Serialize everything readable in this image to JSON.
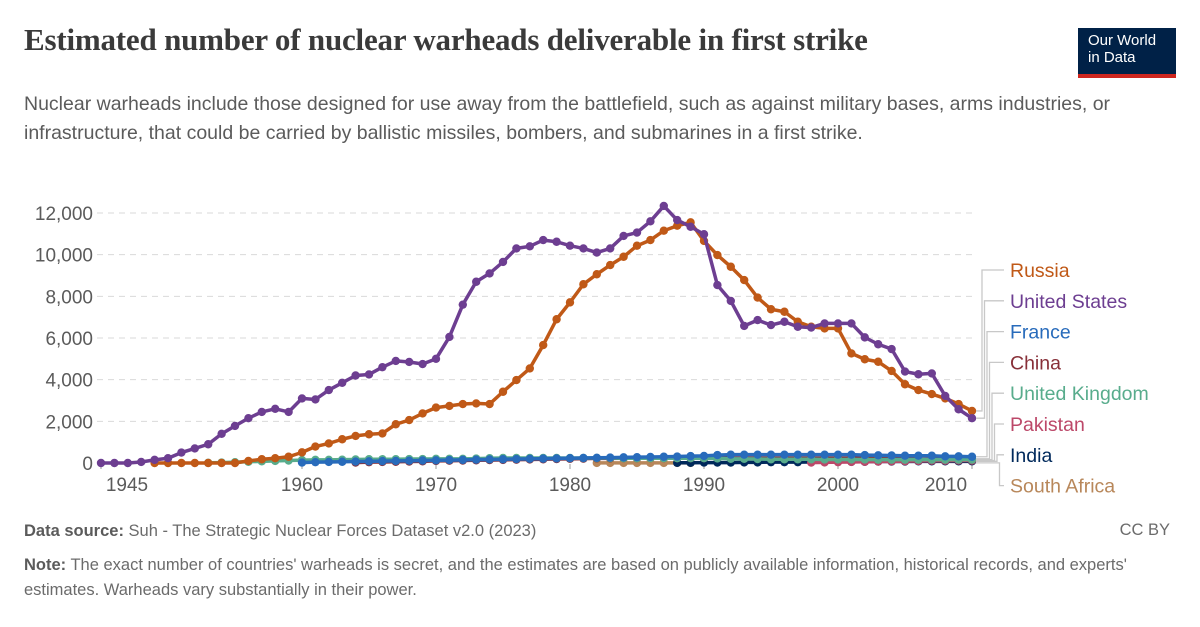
{
  "header": {
    "title": "Estimated number of nuclear warheads deliverable in first strike",
    "subtitle": "Nuclear warheads include those designed for use away from the battlefield, such as against military bases, arms industries, or infrastructure, that could be carried by ballistic missiles, bombers, and submarines in a first strike.",
    "logo_line1": "Our World",
    "logo_line2": "in Data"
  },
  "footer": {
    "source_label": "Data source:",
    "source_text": " Suh - The Strategic Nuclear Forces Dataset v2.0 (2023)",
    "license": "CC BY",
    "note_label": "Note:",
    "note_text": " The exact number of countries' warheads is secret, and the estimates are based on publicly available information, historical records, and experts' estimates. Warheads vary substantially in their power."
  },
  "chart_data": {
    "type": "line",
    "title": "Estimated number of nuclear warheads deliverable in first strike",
    "xlim": [
      1945,
      2010
    ],
    "ylim": [
      0,
      12000
    ],
    "x_ticks": [
      1945,
      1960,
      1970,
      1980,
      1990,
      2000,
      2010
    ],
    "y_ticks": [
      0,
      2000,
      4000,
      6000,
      8000,
      10000,
      12000
    ],
    "y_tick_labels": [
      "0",
      "2,000",
      "4,000",
      "6,000",
      "8,000",
      "10,000",
      "12,000"
    ],
    "grid": "horizontal dashed",
    "legend": "right (line-end labels)",
    "series": [
      {
        "name": "Russia",
        "color": "#c05917",
        "start_year": 1949,
        "values": [
          0,
          0,
          0,
          0,
          0,
          0,
          0,
          100,
          180,
          230,
          300,
          510,
          790,
          940,
          1140,
          1300,
          1380,
          1420,
          1860,
          2060,
          2380,
          2660,
          2740,
          2830,
          2860,
          2830,
          3420,
          3980,
          4540,
          5660,
          6900,
          7710,
          8580,
          9060,
          9500,
          9900,
          10430,
          10700,
          11150,
          11390,
          11550,
          10660,
          9980,
          9420,
          8780,
          7940,
          7380,
          7260,
          6780,
          6540,
          6460,
          6460,
          5260,
          4980,
          4860,
          4420,
          3780,
          3500,
          3310,
          3100,
          2830,
          2500
        ]
      },
      {
        "name": "United States",
        "color": "#6d3e91",
        "start_year": 1945,
        "values": [
          0,
          0,
          0,
          50,
          150,
          230,
          500,
          700,
          900,
          1400,
          1780,
          2150,
          2450,
          2600,
          2450,
          3100,
          3050,
          3500,
          3850,
          4200,
          4250,
          4600,
          4900,
          4850,
          4750,
          5000,
          6050,
          7600,
          8700,
          9100,
          9650,
          10300,
          10400,
          10700,
          10620,
          10430,
          10300,
          10100,
          10300,
          10900,
          11060,
          11600,
          12340,
          11660,
          11340,
          10980,
          8540,
          7780,
          6580,
          6860,
          6620,
          6780,
          6540,
          6500,
          6700,
          6700,
          6700,
          6030,
          5700,
          5470,
          4390,
          4260,
          4300,
          3220,
          2580,
          2150
        ]
      },
      {
        "name": "France",
        "color": "#286bbb",
        "start_year": 1960,
        "values": [
          20,
          40,
          50,
          60,
          70,
          80,
          90,
          100,
          110,
          120,
          130,
          140,
          150,
          160,
          170,
          180,
          190,
          200,
          210,
          220,
          230,
          240,
          250,
          260,
          270,
          280,
          290,
          300,
          310,
          330,
          340,
          380,
          400,
          400,
          400,
          400,
          400,
          400,
          400,
          400,
          400,
          400,
          380,
          370,
          360,
          350,
          350,
          350,
          320,
          320,
          300
        ]
      },
      {
        "name": "China",
        "color": "#883039",
        "start_year": 1964,
        "values": [
          20,
          40,
          50,
          60,
          70,
          80,
          100,
          110,
          120,
          130,
          140,
          150,
          160,
          170,
          180,
          190,
          200,
          210,
          220,
          220,
          230,
          230,
          230,
          230,
          230,
          230,
          230,
          230,
          230,
          230,
          230,
          230,
          230,
          230,
          230,
          230,
          230,
          230,
          230,
          230,
          230,
          230,
          170,
          180,
          180,
          190,
          200
        ]
      },
      {
        "name": "United Kingdom",
        "color": "#58ac8c",
        "start_year": 1953,
        "values": [
          10,
          20,
          40,
          60,
          80,
          100,
          120,
          140,
          150,
          150,
          160,
          170,
          180,
          180,
          180,
          190,
          190,
          200,
          200,
          200,
          210,
          230,
          240,
          240,
          240,
          240,
          240,
          240,
          240,
          240,
          240,
          230,
          230,
          230,
          230,
          230,
          230,
          230,
          220,
          200,
          200,
          190,
          180,
          180,
          180,
          180,
          170,
          170,
          170,
          170,
          160,
          160,
          160,
          160,
          160,
          160,
          160,
          160
        ]
      },
      {
        "name": "Pakistan",
        "color": "#bc4869",
        "start_year": 1998,
        "values": [
          20,
          30,
          40,
          50,
          60,
          70,
          80,
          90,
          100,
          110,
          110,
          120,
          120
        ]
      },
      {
        "name": "India",
        "color": "#00295b",
        "start_year": 1988,
        "values": [
          10,
          10,
          20,
          20,
          20,
          30,
          30,
          40,
          40,
          40,
          50,
          50,
          60,
          60,
          60,
          70,
          70,
          70,
          80,
          80,
          80,
          80,
          80
        ]
      },
      {
        "name": "South Africa",
        "color": "#b8875a",
        "start_year": 1982,
        "values": [
          6,
          6,
          6,
          6,
          6,
          6,
          6,
          6
        ]
      }
    ]
  }
}
